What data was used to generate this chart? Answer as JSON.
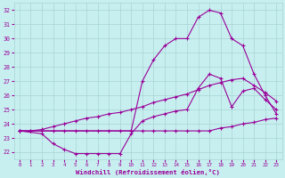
{
  "xlabel": "Windchill (Refroidissement éolien,°C)",
  "bg_color": "#c8efef",
  "grid_color": "#a8d4d4",
  "line_color": "#990099",
  "xlim_min": -0.5,
  "xlim_max": 23.5,
  "ylim_min": 21.5,
  "ylim_max": 32.5,
  "yticks": [
    22,
    23,
    24,
    25,
    26,
    27,
    28,
    29,
    30,
    31,
    32
  ],
  "xticks": [
    0,
    1,
    2,
    3,
    4,
    5,
    6,
    7,
    8,
    9,
    10,
    11,
    12,
    13,
    14,
    15,
    16,
    17,
    18,
    19,
    20,
    21,
    22,
    23
  ],
  "line1_x": [
    0,
    1,
    2,
    3,
    4,
    5,
    6,
    7,
    8,
    9,
    10,
    11,
    12,
    13,
    14,
    15,
    16,
    17,
    18,
    19,
    20,
    21,
    22,
    23
  ],
  "line1_y": [
    23.5,
    23.5,
    23.5,
    23.5,
    23.5,
    23.5,
    23.5,
    23.5,
    23.5,
    23.5,
    23.5,
    23.5,
    23.5,
    23.5,
    23.5,
    23.5,
    23.5,
    23.5,
    23.7,
    23.8,
    24.0,
    24.1,
    24.3,
    24.4
  ],
  "line2_x": [
    0,
    2,
    3,
    4,
    5,
    6,
    7,
    8,
    9,
    10,
    11,
    12,
    13,
    14,
    15,
    16,
    17,
    18,
    19,
    20,
    21,
    22,
    23
  ],
  "line2_y": [
    23.5,
    23.3,
    22.6,
    22.2,
    21.9,
    21.9,
    21.9,
    21.9,
    21.9,
    23.3,
    24.2,
    24.5,
    24.7,
    24.9,
    25.0,
    26.5,
    27.5,
    27.2,
    25.2,
    26.3,
    26.5,
    25.7,
    25.0
  ],
  "line3_x": [
    0,
    1,
    2,
    3,
    4,
    5,
    6,
    7,
    8,
    9,
    10,
    11,
    12,
    13,
    14,
    15,
    16,
    17,
    18,
    19,
    20,
    21,
    22,
    23
  ],
  "line3_y": [
    23.5,
    23.5,
    23.6,
    23.8,
    24.0,
    24.2,
    24.4,
    24.5,
    24.7,
    24.8,
    25.0,
    25.2,
    25.5,
    25.7,
    25.9,
    26.1,
    26.4,
    26.7,
    26.9,
    27.1,
    27.2,
    26.7,
    26.2,
    25.6
  ],
  "line4_x": [
    0,
    10,
    11,
    12,
    13,
    14,
    15,
    16,
    17,
    18,
    19,
    20,
    21,
    22,
    23
  ],
  "line4_y": [
    23.5,
    23.5,
    27.0,
    28.5,
    29.5,
    30.0,
    30.0,
    31.5,
    32.0,
    31.8,
    30.0,
    29.5,
    27.5,
    26.0,
    24.7
  ]
}
